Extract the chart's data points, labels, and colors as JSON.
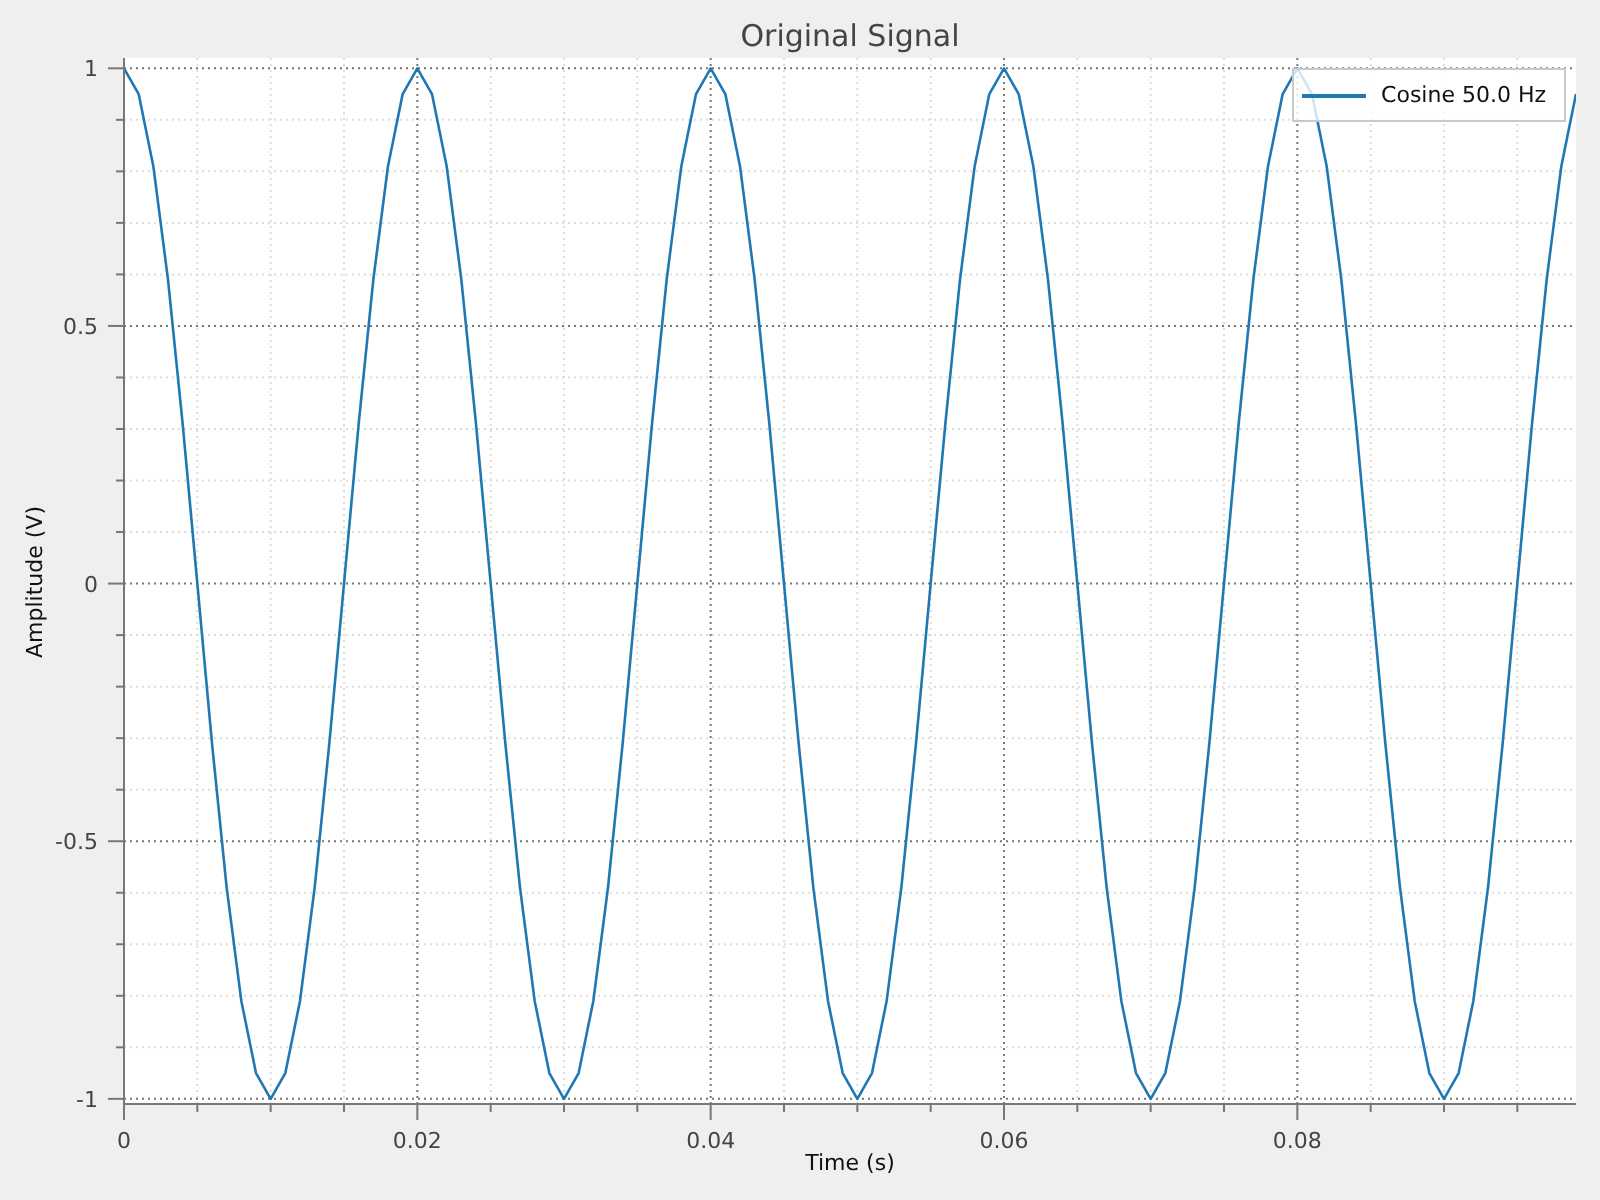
{
  "chart_data": {
    "type": "line",
    "title": "Original Signal",
    "xlabel": "Time (s)",
    "ylabel": "Amplitude (V)",
    "x": [
      0,
      0.001,
      0.002,
      0.003,
      0.004,
      0.005,
      0.006,
      0.007,
      0.008,
      0.009,
      0.01,
      0.011,
      0.012,
      0.013,
      0.014,
      0.015,
      0.016,
      0.017,
      0.018,
      0.019,
      0.02,
      0.021,
      0.022,
      0.023,
      0.024,
      0.025,
      0.026,
      0.027,
      0.028,
      0.029,
      0.03,
      0.031,
      0.032,
      0.033,
      0.034,
      0.035,
      0.036,
      0.037,
      0.038,
      0.039,
      0.04,
      0.041,
      0.042,
      0.043,
      0.044,
      0.045,
      0.046,
      0.047,
      0.048,
      0.049,
      0.05,
      0.051,
      0.052,
      0.053,
      0.054,
      0.055,
      0.056,
      0.057,
      0.058,
      0.059,
      0.06,
      0.061,
      0.062,
      0.063,
      0.064,
      0.065,
      0.066,
      0.067,
      0.068,
      0.069,
      0.07,
      0.071,
      0.072,
      0.073,
      0.074,
      0.075,
      0.076,
      0.077,
      0.078,
      0.079,
      0.08,
      0.081,
      0.082,
      0.083,
      0.084,
      0.085,
      0.086,
      0.087,
      0.088,
      0.089,
      0.09,
      0.091,
      0.092,
      0.093,
      0.094,
      0.095,
      0.096,
      0.097,
      0.098,
      0.099
    ],
    "series": [
      {
        "name": "Cosine 50.0 Hz",
        "color": "#1f77b4",
        "values": [
          1,
          0.95,
          0.81,
          0.59,
          0.31,
          0,
          -0.31,
          -0.59,
          -0.81,
          -0.95,
          -1,
          -0.95,
          -0.81,
          -0.59,
          -0.31,
          0,
          0.31,
          0.59,
          0.81,
          0.95,
          1,
          0.95,
          0.81,
          0.59,
          0.31,
          0,
          -0.31,
          -0.59,
          -0.81,
          -0.95,
          -1,
          -0.95,
          -0.81,
          -0.59,
          -0.31,
          0,
          0.31,
          0.59,
          0.81,
          0.95,
          1,
          0.95,
          0.81,
          0.59,
          0.31,
          0,
          -0.31,
          -0.59,
          -0.81,
          -0.95,
          -1,
          -0.95,
          -0.81,
          -0.59,
          -0.31,
          0,
          0.31,
          0.59,
          0.81,
          0.95,
          1,
          0.95,
          0.81,
          0.59,
          0.31,
          0,
          -0.31,
          -0.59,
          -0.81,
          -0.95,
          -1,
          -0.95,
          -0.81,
          -0.59,
          -0.31,
          0,
          0.31,
          0.59,
          0.81,
          0.95,
          1,
          0.95,
          0.81,
          0.59,
          0.31,
          0,
          -0.31,
          -0.59,
          -0.81,
          -0.95,
          -1,
          -0.95,
          -0.81,
          -0.59,
          -0.31,
          0,
          0.31,
          0.59,
          0.81,
          0.95
        ]
      }
    ],
    "xlim": [
      0,
      0.099
    ],
    "xticks": [
      0,
      {
        "value": 0.005,
        "label": null
      },
      {
        "value": 0.01,
        "label": null
      },
      {
        "value": 0.015,
        "label": null
      },
      0.02,
      {
        "value": 0.025,
        "label": null
      },
      {
        "value": 0.03,
        "label": null
      },
      {
        "value": 0.035,
        "label": null
      },
      0.04,
      {
        "value": 0.045,
        "label": null
      },
      {
        "value": 0.05,
        "label": null
      },
      {
        "value": 0.055,
        "label": null
      },
      0.06,
      {
        "value": 0.065,
        "label": null
      },
      {
        "value": 0.07,
        "label": null
      },
      {
        "value": 0.075,
        "label": null
      },
      0.08,
      {
        "value": 0.085,
        "label": null
      },
      {
        "value": 0.09,
        "label": null
      },
      {
        "value": 0.095,
        "label": null
      }
    ],
    "ylim": [
      -1.01,
      1.02
    ],
    "yticks": [
      -1,
      {
        "value": -0.9,
        "label": null
      },
      {
        "value": -0.8,
        "label": null
      },
      {
        "value": -0.7,
        "label": null
      },
      {
        "value": -0.6,
        "label": null
      },
      -0.5,
      {
        "value": -0.4,
        "label": null
      },
      {
        "value": -0.3,
        "label": null
      },
      {
        "value": -0.2,
        "label": null
      },
      {
        "value": -0.1,
        "label": null
      },
      0,
      {
        "value": 0.1,
        "label": null
      },
      {
        "value": 0.2,
        "label": null
      },
      {
        "value": 0.3,
        "label": null
      },
      {
        "value": 0.4,
        "label": null
      },
      0.5,
      {
        "value": 0.6,
        "label": null
      },
      {
        "value": 0.7,
        "label": null
      },
      {
        "value": 0.8,
        "label": null
      },
      {
        "value": 0.9,
        "label": null
      },
      1
    ],
    "grid": true,
    "legend": "top right",
    "marker": "none",
    "line_style": "solid"
  }
}
